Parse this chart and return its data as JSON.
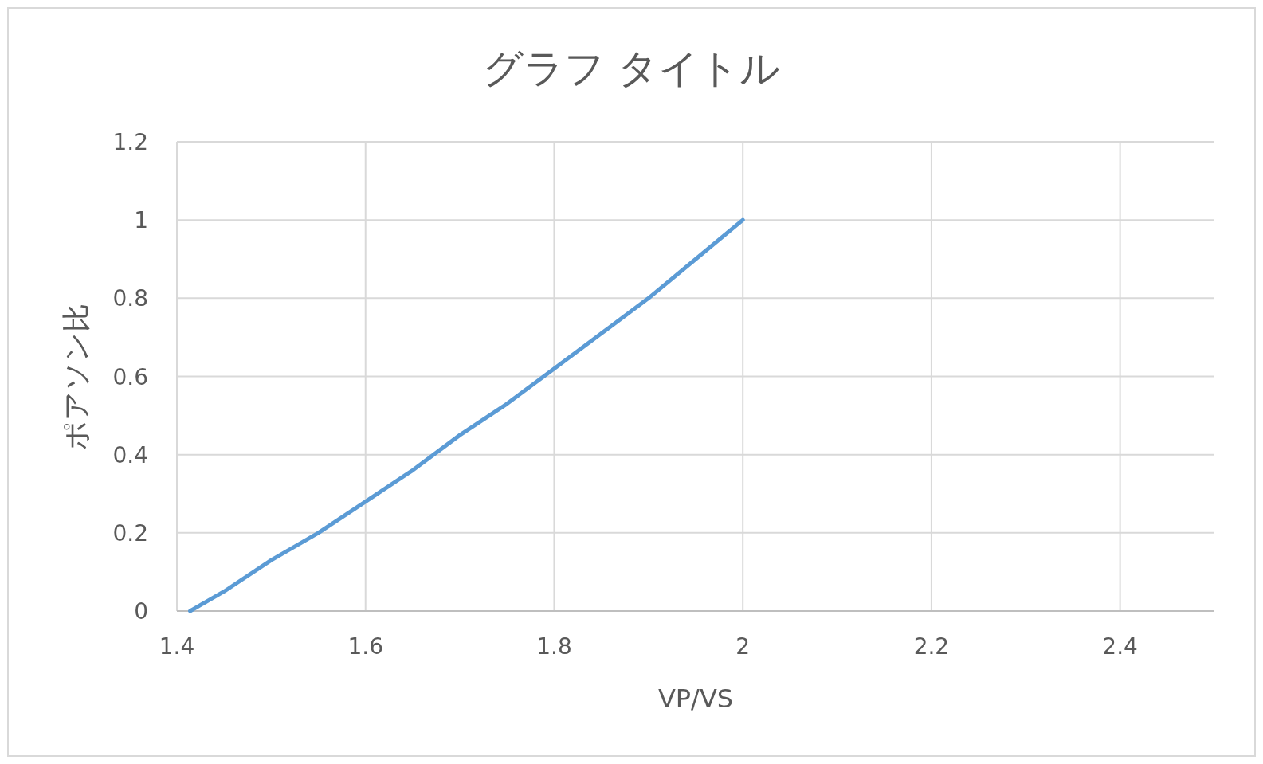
{
  "chart_data": {
    "type": "line",
    "title": "グラフ タイトル",
    "xlabel": "VP/VS",
    "ylabel": "ポアソン比",
    "series": [
      {
        "color": "#5b9bd5",
        "x": [
          1.414,
          1.45,
          1.5,
          1.55,
          1.6,
          1.65,
          1.7,
          1.75,
          1.8,
          1.85,
          1.9,
          1.95,
          2
        ],
        "values": [
          0,
          0.05,
          0.13,
          0.2,
          0.28,
          0.36,
          0.45,
          0.53,
          0.62,
          0.71,
          0.8,
          0.9,
          1
        ]
      }
    ],
    "xlim": [
      1.4,
      2.5
    ],
    "ylim": [
      0,
      1.2
    ],
    "xticks": [
      1.4,
      1.6,
      1.8,
      2,
      2.2,
      2.4
    ],
    "yticks": [
      0,
      0.2,
      0.4,
      0.6,
      0.8,
      1,
      1.2
    ],
    "grid": true,
    "marker": "none",
    "line_style": "solid"
  }
}
